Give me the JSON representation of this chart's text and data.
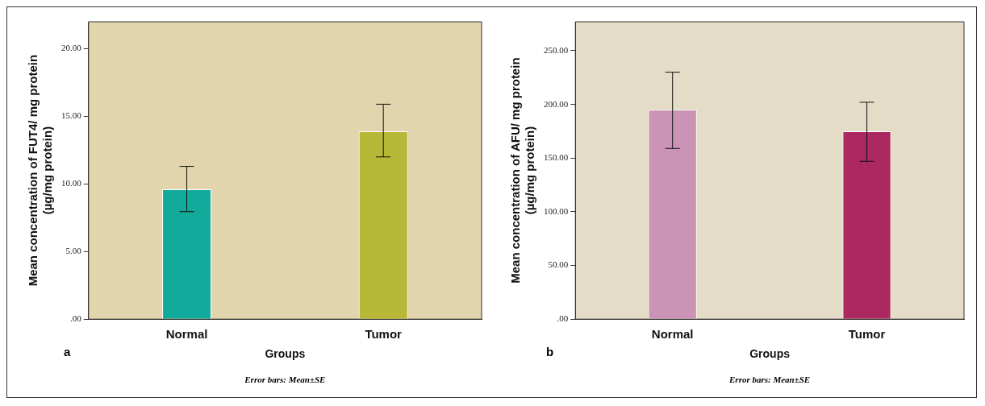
{
  "chart_data": [
    {
      "type": "bar",
      "xlabel": "Groups",
      "ylabel": "Mean concentration of FUT4/ mg protein (µg/mg protein)",
      "categories": [
        "Normal",
        "Tumor"
      ],
      "values": [
        9.6,
        13.9
      ],
      "colors": [
        "#12aa9a",
        "#b8b838"
      ],
      "errors": [
        [
          7.95,
          11.3
        ],
        [
          12.0,
          15.9
        ]
      ],
      "ylim": [
        0,
        22
      ],
      "yticks": [
        {
          "value": 0,
          "label": ".00"
        },
        {
          "value": 5,
          "label": "5.00"
        },
        {
          "value": 10,
          "label": "10.00"
        },
        {
          "value": 15,
          "label": "15.00"
        },
        {
          "value": 20,
          "label": "20.00"
        }
      ],
      "grid": false,
      "legend": false,
      "annotations": [
        "a",
        "Error bars: Mean±SE"
      ]
    },
    {
      "type": "bar",
      "xlabel": "Groups",
      "ylabel": "Mean concentration of AFU/ mg protein (µg/mg protein)",
      "categories": [
        "Normal",
        "Tumor"
      ],
      "values": [
        195,
        175
      ],
      "colors": [
        "#cb93b6",
        "#ab2860"
      ],
      "errors": [
        [
          159,
          230
        ],
        [
          147,
          202
        ]
      ],
      "ylim": [
        0,
        277
      ],
      "yticks": [
        {
          "value": 0,
          "label": ".00"
        },
        {
          "value": 50,
          "label": "50.00"
        },
        {
          "value": 100,
          "label": "100.00"
        },
        {
          "value": 150,
          "label": "150.00"
        },
        {
          "value": 200,
          "label": "200.00"
        },
        {
          "value": 250,
          "label": "250.00"
        }
      ],
      "grid": false,
      "legend": false,
      "annotations": [
        "b",
        "Error bars: Mean±SE"
      ]
    }
  ]
}
